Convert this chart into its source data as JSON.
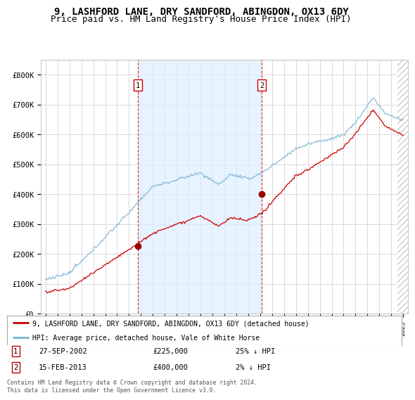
{
  "title": "9, LASHFORD LANE, DRY SANDFORD, ABINGDON, OX13 6DY",
  "subtitle": "Price paid vs. HM Land Registry's House Price Index (HPI)",
  "ylim": [
    0,
    850000
  ],
  "yticks": [
    0,
    100000,
    200000,
    300000,
    400000,
    500000,
    600000,
    700000,
    800000
  ],
  "ytick_labels": [
    "£0",
    "£100K",
    "£200K",
    "£300K",
    "£400K",
    "£500K",
    "£600K",
    "£700K",
    "£800K"
  ],
  "x_start_year": 1995,
  "x_end_year": 2025,
  "purchase1_date": 2002.74,
  "purchase1_price": 225000,
  "purchase2_date": 2013.12,
  "purchase2_price": 400000,
  "red_line_color": "#cc0000",
  "blue_line_color": "#7ab3d4",
  "vline_color": "#cc0000",
  "dot_color": "#990000",
  "background_color": "#ffffff",
  "grid_color": "#cccccc",
  "shade_color": "#ddeeff",
  "legend_line1": "9, LASHFORD LANE, DRY SANDFORD, ABINGDON, OX13 6DY (detached house)",
  "legend_line2": "HPI: Average price, detached house, Vale of White Horse",
  "footnote": "Contains HM Land Registry data © Crown copyright and database right 2024.\nThis data is licensed under the Open Government Licence v3.0.",
  "title_fontsize": 10,
  "subtitle_fontsize": 9
}
